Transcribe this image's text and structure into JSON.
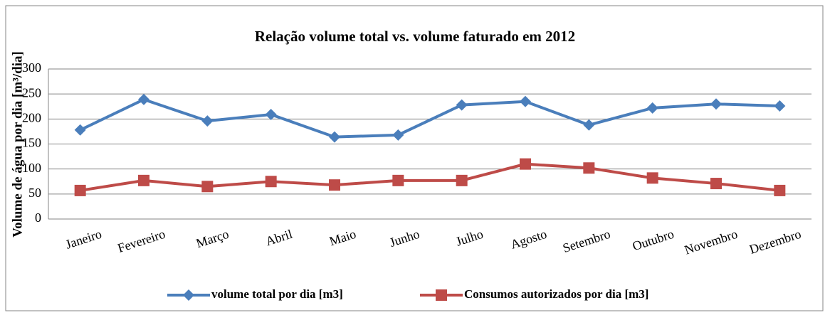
{
  "chart_data": {
    "type": "line",
    "title": "Relação volume total vs. volume faturado em 2012",
    "y_label": "Volume de água por dia [m³/dia]",
    "categories": [
      "Janeiro",
      "Fevereiro",
      "Março",
      "Abril",
      "Maio",
      "Junho",
      "Julho",
      "Agosto",
      "Setembro",
      "Outubro",
      "Novembro",
      "Dezembro"
    ],
    "series": [
      {
        "name": "volume total por dia [m3]",
        "color": "#4a7ebb",
        "marker": "diamond",
        "values": [
          178,
          239,
          196,
          209,
          164,
          168,
          228,
          235,
          188,
          222,
          230,
          226
        ]
      },
      {
        "name": "Consumos autorizados por dia [m3]",
        "color": "#be4b48",
        "marker": "square",
        "values": [
          57,
          77,
          65,
          75,
          68,
          77,
          77,
          110,
          102,
          82,
          71,
          57
        ]
      }
    ],
    "ylim": [
      0,
      300
    ],
    "yticks": [
      0,
      50,
      100,
      150,
      200,
      250,
      300
    ],
    "grid": true,
    "legend": "bottom"
  }
}
